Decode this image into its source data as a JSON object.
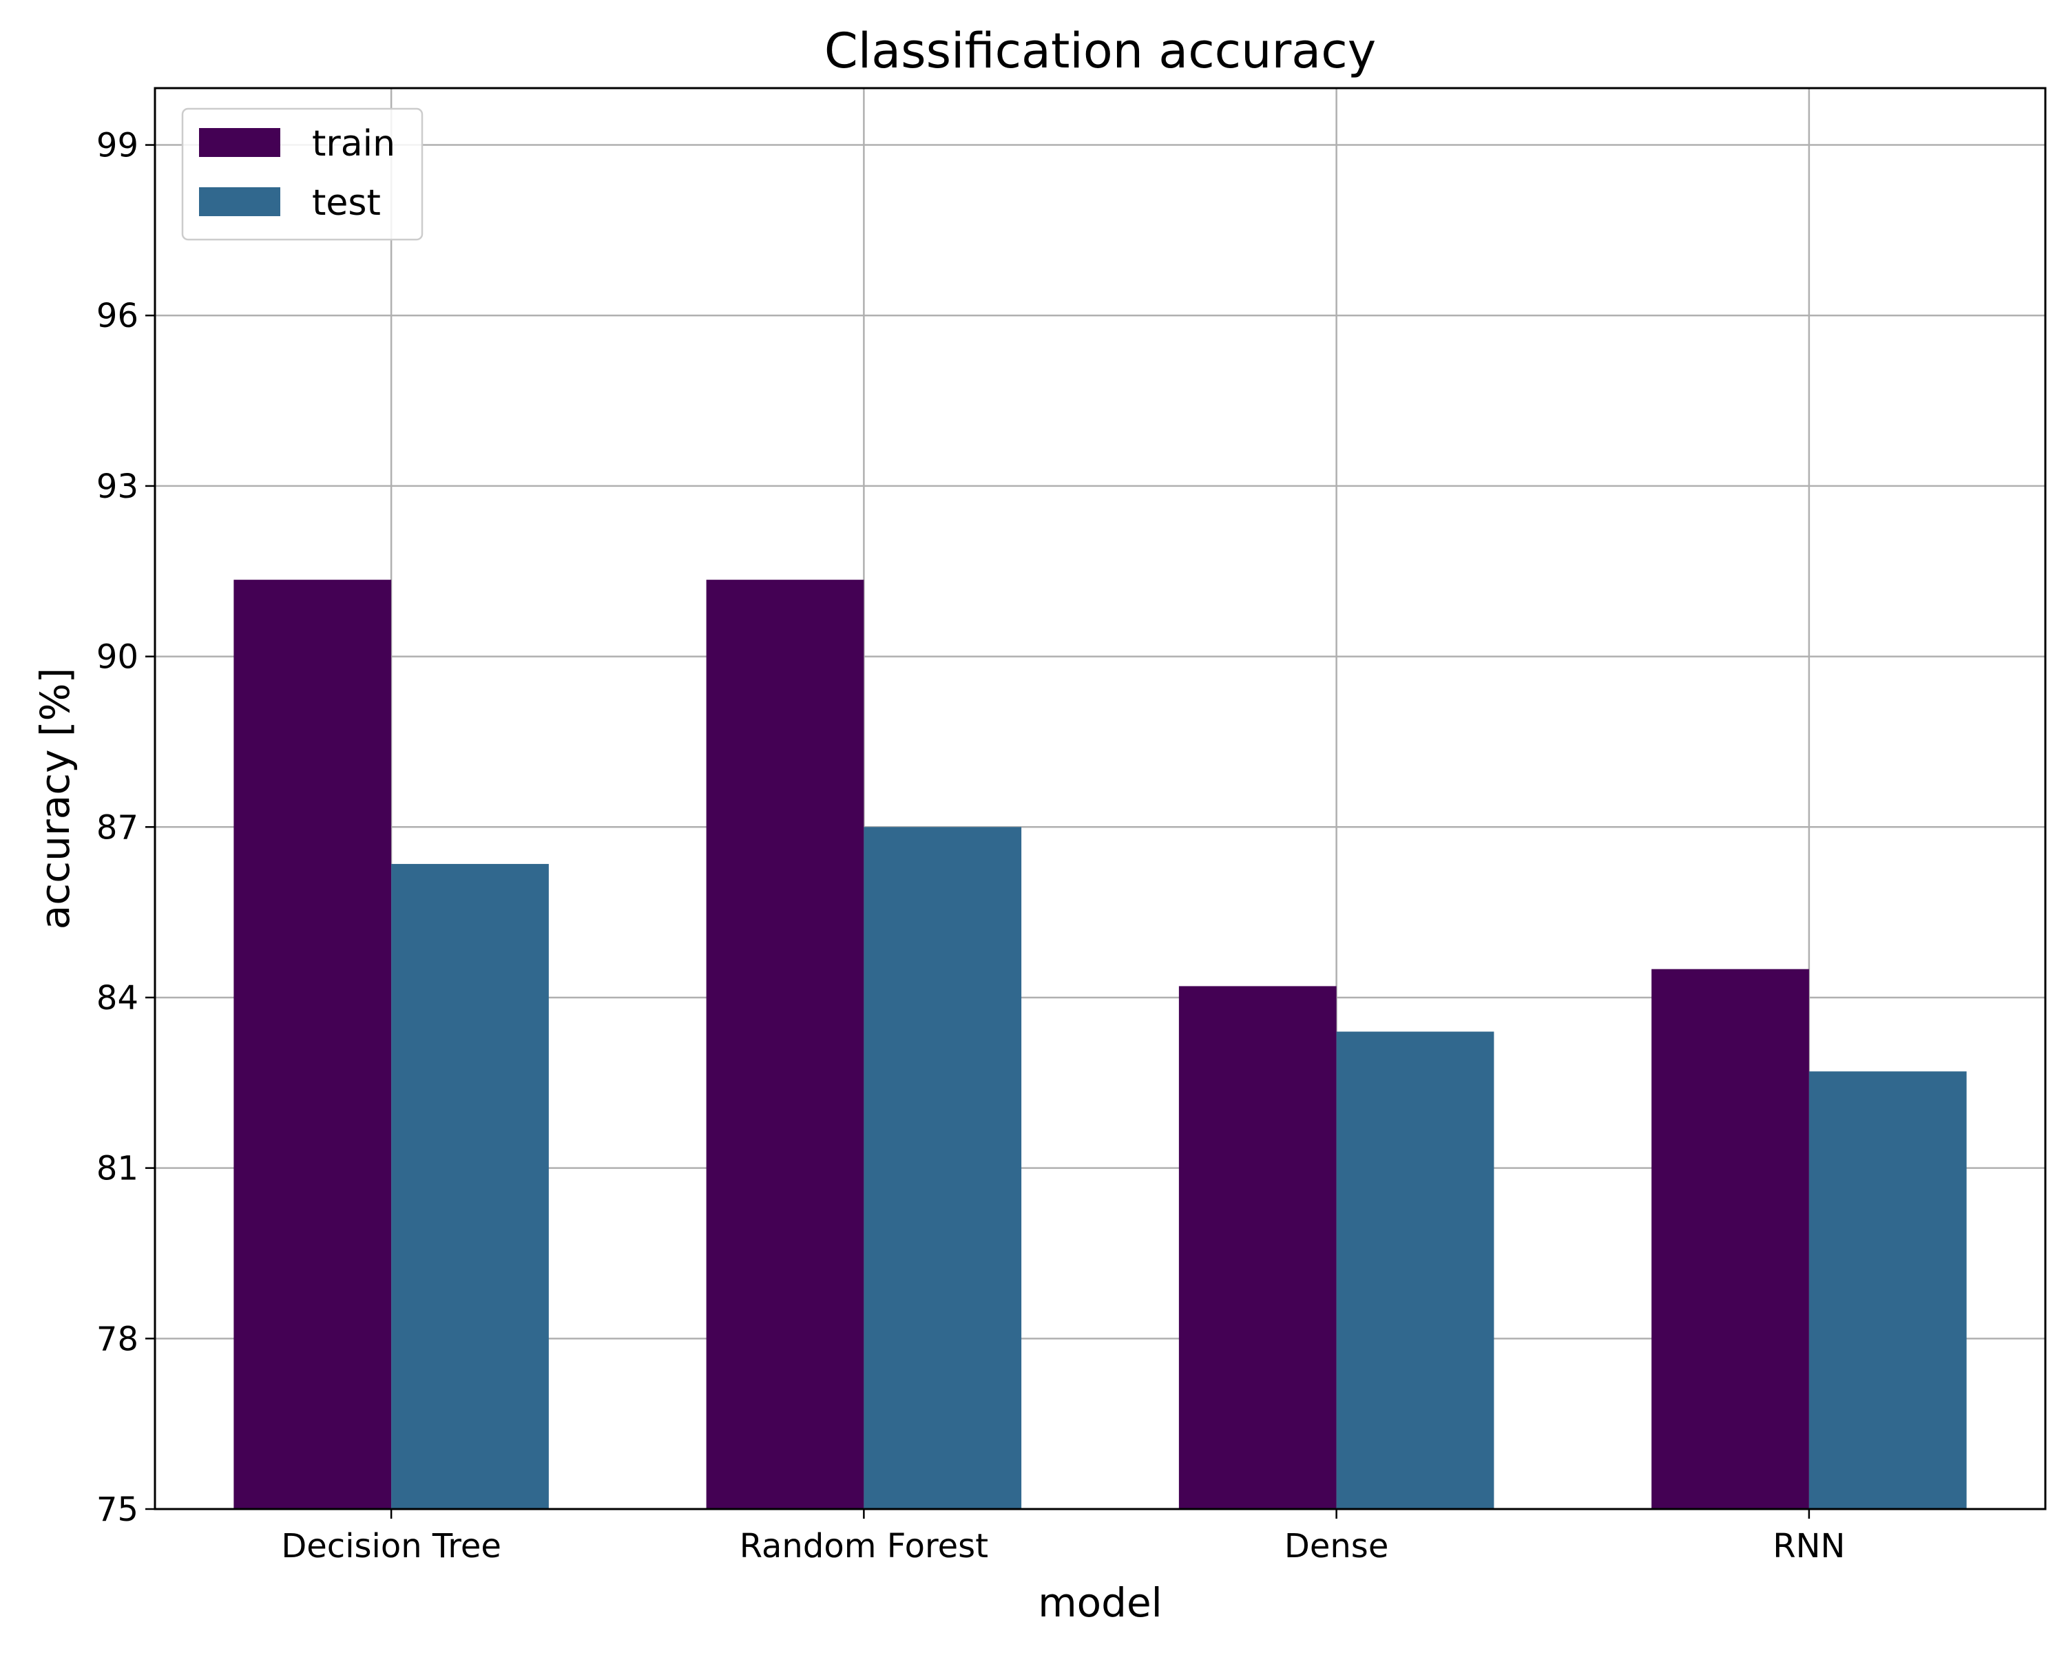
{
  "chart_data": {
    "type": "bar",
    "title": "Classification accuracy",
    "xlabel": "model",
    "ylabel": "accuracy [%]",
    "categories": [
      "Decision Tree",
      "Random Forest",
      "Dense",
      "RNN"
    ],
    "series": [
      {
        "name": "train",
        "color": "#440154",
        "values": [
          91.35,
          91.35,
          84.2,
          84.5
        ]
      },
      {
        "name": "test",
        "color": "#31688e",
        "values": [
          86.35,
          87.0,
          83.4,
          82.7
        ]
      }
    ],
    "ylim": [
      75,
      100
    ],
    "yticks": [
      75,
      78,
      81,
      84,
      87,
      90,
      93,
      96,
      99
    ],
    "grid": true,
    "legend_position": "top-left"
  }
}
